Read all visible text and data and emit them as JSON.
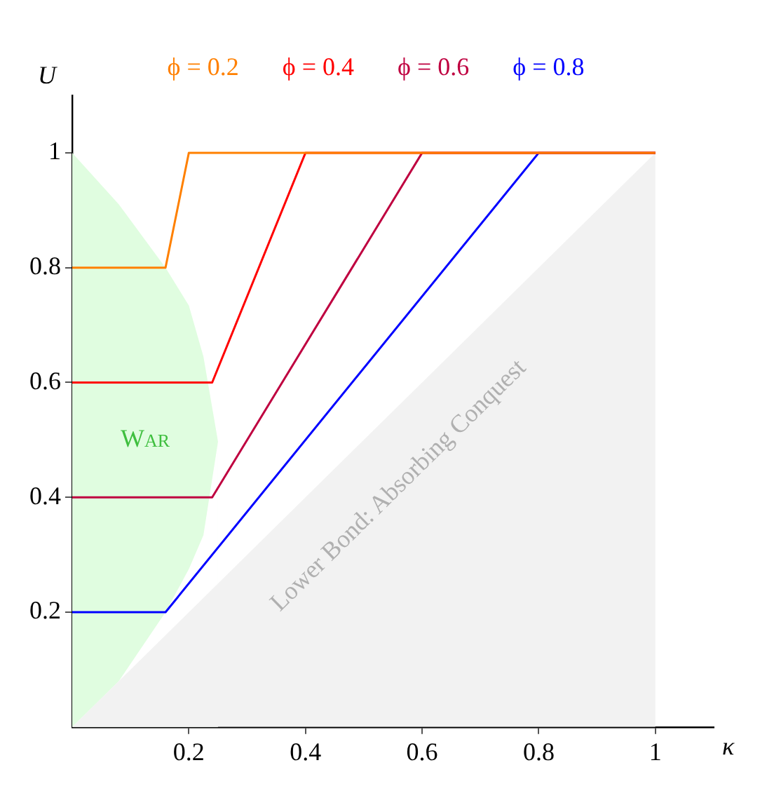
{
  "chart_data": {
    "type": "line",
    "xlabel": "κ",
    "ylabel": "U",
    "xlim": [
      0,
      1.1
    ],
    "ylim": [
      0,
      1.1
    ],
    "xticks": [
      0.2,
      0.4,
      0.6,
      0.8,
      1
    ],
    "yticks": [
      0.2,
      0.4,
      0.6,
      0.8,
      1
    ],
    "legend": "top",
    "series": [
      {
        "type": "area",
        "color": "#e0fde0",
        "x": [
          0,
          0.08,
          0.16,
          0.2,
          0.225,
          0.25
        ],
        "values": [
          1,
          0.91,
          0.8,
          0.734,
          0.645,
          0.497
        ]
      },
      {
        "type": "area",
        "color": "#ffffff",
        "x": [
          0,
          0.08,
          0.16,
          0.2,
          0.225,
          0.25
        ],
        "values": [
          0,
          0.08,
          0.2,
          0.275,
          0.334,
          0.497
        ]
      },
      {
        "type": "area",
        "color": "#f2f2f2",
        "x": [
          0,
          1
        ],
        "values": [
          0,
          1
        ]
      },
      {
        "name": "ϕ = 0.2",
        "color": "#ff8000",
        "x": [
          0,
          0.16,
          0.2,
          1
        ],
        "values": [
          0.8,
          0.8,
          1,
          1
        ]
      },
      {
        "name": "ϕ = 0.4",
        "color": "#ff0000",
        "x": [
          0,
          0.24,
          0.4,
          1
        ],
        "values": [
          0.6,
          0.6,
          1,
          1
        ]
      },
      {
        "name": "ϕ = 0.6",
        "color": "#bf0040",
        "x": [
          0,
          0.24,
          0.6,
          1
        ],
        "values": [
          0.4,
          0.4,
          1,
          1
        ]
      },
      {
        "name": "ϕ = 0.8",
        "color": "#0000ff",
        "x": [
          0,
          0.16,
          0.8,
          1
        ],
        "values": [
          0.2,
          0.2,
          1,
          1
        ]
      }
    ],
    "annotations": [
      "War",
      "Lower Bond: Absorbing Conquest"
    ]
  }
}
